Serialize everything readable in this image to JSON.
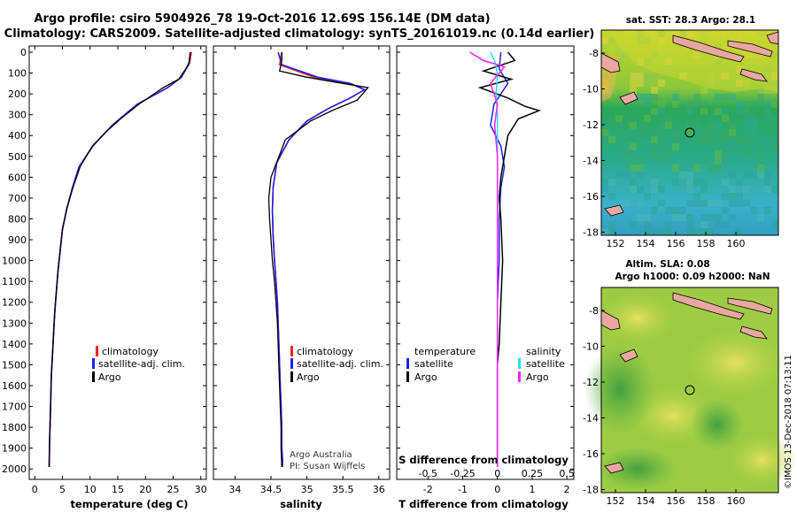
{
  "title": {
    "line1": "Argo profile: csiro 5904926_78 19-Oct-2016 12.69S 156.14E (DM data)",
    "line2": "Climatology: CARS2009. Satellite-adjusted climatology: synTS_20161019.nc (0.14d earlier)"
  },
  "colors": {
    "climatology": "#ff2020",
    "satellite": "#2020ee",
    "argo": "#000000",
    "salinity_satellite": "#22e0f0",
    "salinity_argo": "#ff20ff"
  },
  "chart_data": [
    {
      "type": "line",
      "name": "temperature",
      "xlabel": "temperature (deg C)",
      "ylabel": "",
      "xlim": [
        -1,
        31
      ],
      "ylim": [
        2050,
        0
      ],
      "xticks": [
        0,
        5,
        10,
        15,
        20,
        25,
        30
      ],
      "yticks": [
        0,
        100,
        200,
        300,
        400,
        500,
        600,
        700,
        800,
        900,
        1000,
        1100,
        1200,
        1300,
        1400,
        1500,
        1600,
        1700,
        1800,
        1900,
        2000
      ],
      "legend": [
        "climatology",
        "satellite-adj. clim.",
        "Argo"
      ],
      "series": [
        {
          "name": "climatology",
          "x": [
            28.3,
            28.0,
            26.5,
            24.0,
            18.5,
            14.0,
            10.5,
            8.0,
            6.8,
            5.8,
            5.0,
            4.6,
            4.2,
            3.9,
            3.6,
            3.4,
            3.2,
            3.0,
            2.9,
            2.8,
            2.7,
            2.6
          ],
          "y": [
            0,
            50,
            120,
            170,
            250,
            350,
            450,
            550,
            650,
            750,
            850,
            950,
            1050,
            1150,
            1250,
            1350,
            1450,
            1550,
            1650,
            1750,
            1850,
            1990
          ]
        },
        {
          "name": "satellite-adj. clim.",
          "x": [
            28.1,
            27.9,
            26.5,
            24.0,
            18.5,
            14.0,
            10.5,
            8.0,
            6.8,
            5.8,
            5.0,
            4.6,
            4.2,
            3.9,
            3.6,
            3.4,
            3.2,
            3.0,
            2.9,
            2.8,
            2.7,
            2.6
          ],
          "y": [
            0,
            50,
            120,
            170,
            250,
            350,
            450,
            550,
            650,
            750,
            850,
            950,
            1050,
            1150,
            1250,
            1350,
            1450,
            1550,
            1650,
            1750,
            1850,
            1990
          ]
        },
        {
          "name": "Argo",
          "x": [
            28.1,
            27.8,
            26.0,
            23.2,
            18.8,
            15.5,
            13.0,
            10.4,
            8.2,
            6.9,
            5.8,
            5.0,
            4.6,
            4.2,
            3.9,
            3.6,
            3.4,
            3.2,
            3.0,
            2.9,
            2.8,
            2.7,
            2.6
          ],
          "y": [
            0,
            60,
            130,
            170,
            250,
            320,
            380,
            450,
            550,
            650,
            750,
            850,
            950,
            1050,
            1150,
            1250,
            1350,
            1450,
            1550,
            1650,
            1750,
            1850,
            1990
          ]
        }
      ]
    },
    {
      "type": "line",
      "name": "salinity",
      "xlabel": "salinity",
      "xlim": [
        33.7,
        36.15
      ],
      "ylim": [
        2050,
        0
      ],
      "xticks": [
        34,
        34.5,
        35,
        35.5,
        36
      ],
      "xticklabels": [
        "34",
        "34.5",
        "35",
        "35.5",
        "36"
      ],
      "legend": [
        "climatology",
        "satellite-adj. clim.",
        "Argo"
      ],
      "annotation": [
        "Argo Australia",
        "PI: Susan Wijffels"
      ],
      "series": [
        {
          "name": "climatology",
          "x": [
            34.65,
            34.62,
            35.1,
            35.6,
            35.8,
            35.6,
            35.3,
            35.0,
            34.75,
            34.58,
            34.53,
            34.52,
            34.53,
            34.55,
            34.57,
            34.59,
            34.6,
            34.61,
            34.62,
            34.63,
            34.64,
            34.65,
            34.65,
            34.66,
            34.66
          ],
          "y": [
            0,
            60,
            120,
            150,
            180,
            220,
            270,
            330,
            420,
            530,
            650,
            760,
            880,
            1000,
            1100,
            1200,
            1300,
            1400,
            1500,
            1600,
            1700,
            1800,
            1900,
            1950,
            1990
          ]
        },
        {
          "name": "satellite-adj. clim.",
          "x": [
            34.6,
            34.65,
            35.15,
            35.6,
            35.8,
            35.6,
            35.3,
            35.0,
            34.75,
            34.58,
            34.53,
            34.52,
            34.53,
            34.55,
            34.57,
            34.59,
            34.6,
            34.61,
            34.62,
            34.63,
            34.64,
            34.65,
            34.65,
            34.66,
            34.66
          ],
          "y": [
            0,
            60,
            120,
            150,
            180,
            220,
            270,
            330,
            420,
            530,
            650,
            760,
            880,
            1000,
            1100,
            1200,
            1300,
            1400,
            1500,
            1600,
            1700,
            1800,
            1900,
            1950,
            1990
          ]
        },
        {
          "name": "Argo",
          "x": [
            34.65,
            34.65,
            34.62,
            35.0,
            35.5,
            35.85,
            35.7,
            35.35,
            35.05,
            34.7,
            34.5,
            34.47,
            34.48,
            34.5,
            34.52,
            34.55,
            34.57,
            34.59,
            34.6,
            34.61,
            34.62,
            34.63,
            34.64,
            34.64,
            34.65
          ],
          "y": [
            0,
            40,
            90,
            120,
            150,
            170,
            230,
            280,
            330,
            420,
            600,
            700,
            800,
            900,
            1000,
            1100,
            1200,
            1300,
            1400,
            1500,
            1600,
            1700,
            1800,
            1900,
            1990
          ]
        }
      ]
    },
    {
      "type": "line",
      "name": "difference",
      "xlabel": "T difference from climatology",
      "xlabel_top": "S difference from climatology",
      "xlim": [
        -2.9,
        2.2
      ],
      "ylim": [
        2050,
        0
      ],
      "xticks": [
        -2,
        -1,
        0,
        1,
        2
      ],
      "top_ticks": [
        -0.5,
        -0.25,
        0,
        0.25,
        0.5
      ],
      "top_ticklabels": [
        "-0.5",
        "-0.25",
        "0",
        "0.25",
        "0.5"
      ],
      "legend_left_title": "temperature",
      "legend_right_title": "salinity",
      "legend_left": [
        "satellite",
        "Argo"
      ],
      "legend_right": [
        "satellite",
        "Argo"
      ],
      "series": [
        {
          "name": "T satellite",
          "x": [
            0.1,
            0.05,
            0.3,
            -0.1,
            -0.2,
            0.1,
            0.2,
            0.1,
            0.05,
            0.05,
            0.0,
            0.0,
            0.0,
            0.0,
            0.0,
            0.0,
            0.0,
            0.0
          ],
          "y": [
            0,
            80,
            150,
            250,
            350,
            450,
            550,
            650,
            800,
            1000,
            1200,
            1400,
            1500,
            1600,
            1700,
            1800,
            1900,
            1990
          ]
        },
        {
          "name": "T Argo",
          "x": [
            0.3,
            0.5,
            -0.4,
            0.4,
            -0.5,
            0.3,
            0.8,
            1.2,
            0.6,
            0.3,
            0.2,
            0.1,
            0.05,
            0.1,
            0.15,
            0.1,
            0.05,
            0.0,
            0.0,
            0.0,
            0.0
          ],
          "y": [
            0,
            40,
            90,
            130,
            170,
            220,
            260,
            280,
            320,
            400,
            500,
            600,
            700,
            800,
            1000,
            1200,
            1400,
            1500,
            1700,
            1900,
            1990
          ]
        },
        {
          "name": "S satellite",
          "x": [
            -0.05,
            -0.01,
            0.0,
            -0.01,
            0.0,
            0.0,
            0.0,
            0.0,
            0.0,
            0.0
          ],
          "y": [
            0,
            60,
            120,
            200,
            300,
            500,
            800,
            1200,
            1600,
            1990
          ]
        },
        {
          "name": "S Argo",
          "x": [
            -0.2,
            -0.1,
            0.05,
            -0.05,
            0.0,
            -0.02,
            0.0,
            0.0,
            0.0,
            0.0,
            0.0
          ],
          "y": [
            0,
            40,
            70,
            150,
            250,
            350,
            500,
            600,
            800,
            1200,
            1990
          ]
        }
      ]
    }
  ],
  "maps": [
    {
      "header": "sat. SST: 28.3 Argo: 28.1",
      "xticks": [
        "152",
        "154",
        "156",
        "158",
        "160"
      ],
      "yticks": [
        "-8",
        "-10",
        "-12",
        "-14",
        "-16",
        "-18"
      ]
    },
    {
      "header_line1": "Altim. SLA: 0.08",
      "header_line2": "Argo h1000: 0.09 h2000: NaN",
      "xticks": [
        "152",
        "154",
        "156",
        "158",
        "160"
      ],
      "yticks": [
        "-8",
        "-10",
        "-12",
        "-14",
        "-16",
        "-18"
      ]
    }
  ],
  "side_credit": "©IMOS 13-Dec-2018 07:13:11"
}
